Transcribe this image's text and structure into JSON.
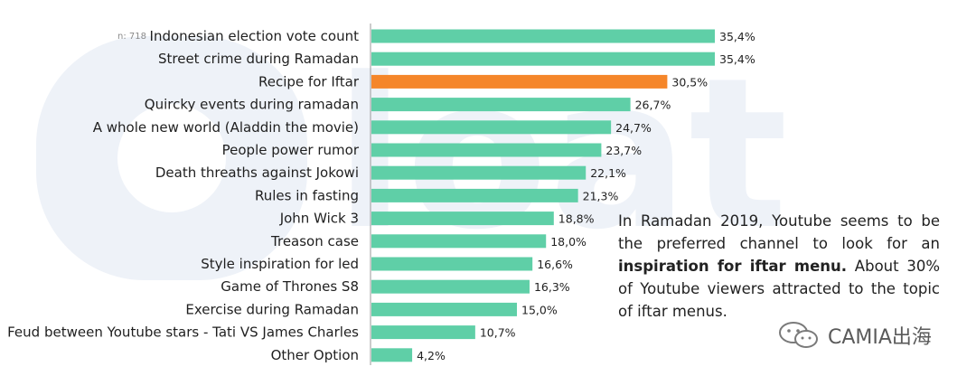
{
  "chart_data": {
    "type": "bar",
    "orientation": "horizontal",
    "sample_note": "n: 718",
    "categories": [
      "Indonesian election vote count",
      "Street crime during Ramadan",
      "Recipe for Iftar",
      "Quircky events during ramadan",
      "A whole new world (Aladdin the movie)",
      "People power rumor",
      "Death threaths against Jokowi",
      "Rules in fasting",
      "John Wick 3",
      "Treason case",
      "Style inspiration for led",
      "Game of Thrones S8",
      "Exercise during Ramadan",
      "Feud between Youtube stars - Tati VS James Charles",
      "Other Option"
    ],
    "values": [
      35.4,
      35.4,
      30.5,
      26.7,
      24.7,
      23.7,
      22.1,
      21.3,
      18.8,
      18.0,
      16.6,
      16.3,
      15.0,
      10.7,
      4.2
    ],
    "value_labels": [
      "35,4%",
      "35,4%",
      "30,5%",
      "26,7%",
      "24,7%",
      "23,7%",
      "22,1%",
      "21,3%",
      "18,8%",
      "18,0%",
      "16,6%",
      "16,3%",
      "15,0%",
      "10,7%",
      "4,2%"
    ],
    "highlight_index": 2,
    "xlim": [
      0,
      35.4
    ],
    "colors": {
      "default": "#5fcfa7",
      "highlight": "#f5862a",
      "axis": "#9a9a9a"
    }
  },
  "annotation": {
    "part1": "In Ramadan 2019, Youtube seems to be the preferred channel to look for an ",
    "bold": "inspiration for iftar menu.",
    "part2": " About 30% of Youtube viewers attracted to the topic of iftar menus."
  },
  "brand": {
    "text": "CAMIA出海",
    "icon": "wechat-icon"
  },
  "watermark": {
    "icon": "brand-watermark-icon",
    "color": "#eef1f6"
  }
}
